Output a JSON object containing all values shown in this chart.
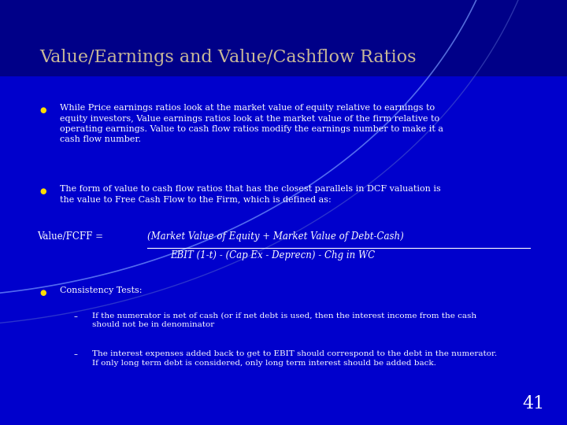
{
  "title": "Value/Earnings and Value/Cashflow Ratios",
  "title_color": "#c8b898",
  "title_fontsize": 16,
  "bg_color": "#0000cc",
  "bg_color2": "#0000aa",
  "text_color": "#ffffff",
  "bullet_color": "#ffdd00",
  "slide_number": "41",
  "bullet1": "While Price earnings ratios look at the market value of equity relative to earnings to\nequity investors, Value earnings ratios look at the market value of the firm relative to\noperating earnings. Value to cash flow ratios modify the earnings number to make it a\ncash flow number.",
  "bullet2": "The form of value to cash flow ratios that has the closest parallels in DCF valuation is\nthe value to Free Cash Flow to the Firm, which is defined as:",
  "formula_label": "Value/FCFF =",
  "formula_num": "(Market Value of Equity + Market Value of Debt-Cash)",
  "formula_den": "EBIT (1-t) - (Cap Ex - Deprecn) - Chg in WC",
  "bullet3": "Consistency Tests:",
  "sub1": "If the numerator is net of cash (or if net debt is used, then the interest income from the cash\nshould not be in denominator",
  "sub2": "The interest expenses added back to get to EBIT should correspond to the debt in the numerator.\nIf only long term debt is considered, only long term interest should be added back.",
  "body_fontsize": 8.0,
  "formula_fontsize": 8.5,
  "sub_fontsize": 7.5
}
